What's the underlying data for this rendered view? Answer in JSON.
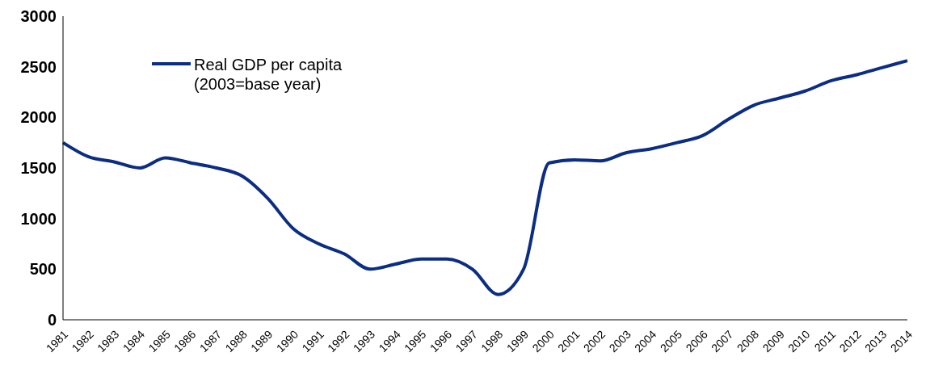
{
  "chart_data": {
    "type": "line",
    "categories": [
      "1981",
      "1982",
      "1983",
      "1984",
      "1985",
      "1986",
      "1987",
      "1988",
      "1989",
      "1990",
      "1991",
      "1992",
      "1993",
      "1994",
      "1995",
      "1996",
      "1997",
      "1998",
      "1999",
      "2000",
      "2001",
      "2002",
      "2003",
      "2004",
      "2005",
      "2006",
      "2007",
      "2008",
      "2009",
      "2010",
      "2011",
      "2012",
      "2013",
      "2014"
    ],
    "series": [
      {
        "name": "Real GDP per capita (2003=base year)",
        "color": "#0b2d83",
        "values": [
          1750,
          1610,
          1560,
          1500,
          1600,
          1550,
          1500,
          1420,
          1200,
          900,
          750,
          650,
          500,
          550,
          600,
          600,
          500,
          250,
          500,
          1550,
          1580,
          1570,
          1650,
          1690,
          1750,
          1820,
          1980,
          2120,
          2190,
          2260,
          2360,
          2420,
          2490,
          2560
        ]
      }
    ],
    "ylim": [
      0,
      3000
    ],
    "yticks": [
      0,
      500,
      1000,
      1500,
      2000,
      2500,
      3000
    ],
    "grid": false,
    "legend": "top left",
    "marker": "none",
    "line_style": "solid"
  }
}
